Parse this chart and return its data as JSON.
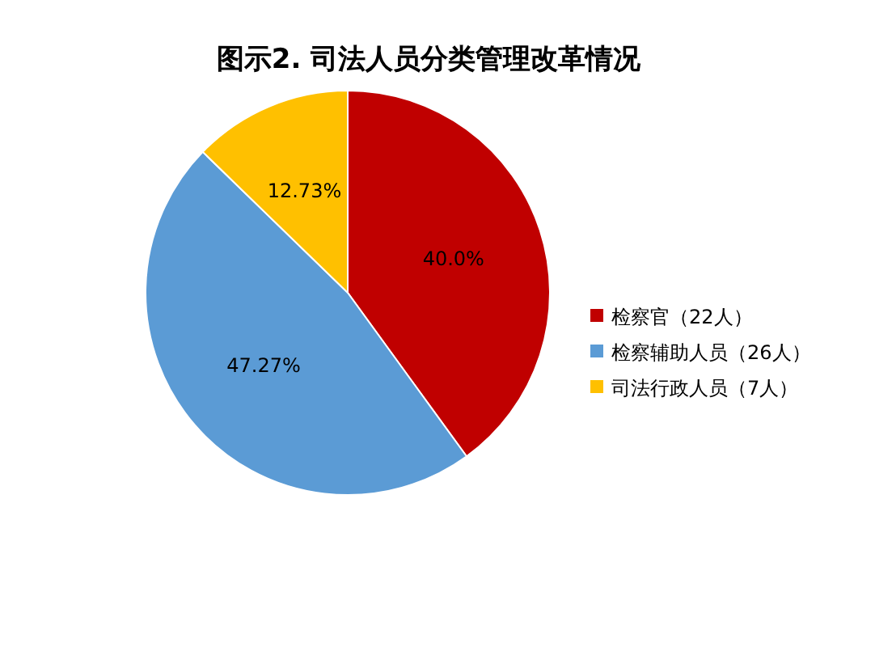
{
  "chart_data": {
    "type": "pie",
    "title": "图示2. 司法人员分类管理改革情况",
    "categories": [
      "检察官（22人）",
      "检察辅助人员（26人）",
      "司法行政人员（7人）"
    ],
    "values": [
      40.0,
      47.27,
      12.73
    ],
    "colors": [
      "#c00000",
      "#5b9bd5",
      "#ffc000"
    ],
    "value_labels": [
      "40.0%",
      "47.27%",
      "12.73%"
    ],
    "legend": "right"
  }
}
